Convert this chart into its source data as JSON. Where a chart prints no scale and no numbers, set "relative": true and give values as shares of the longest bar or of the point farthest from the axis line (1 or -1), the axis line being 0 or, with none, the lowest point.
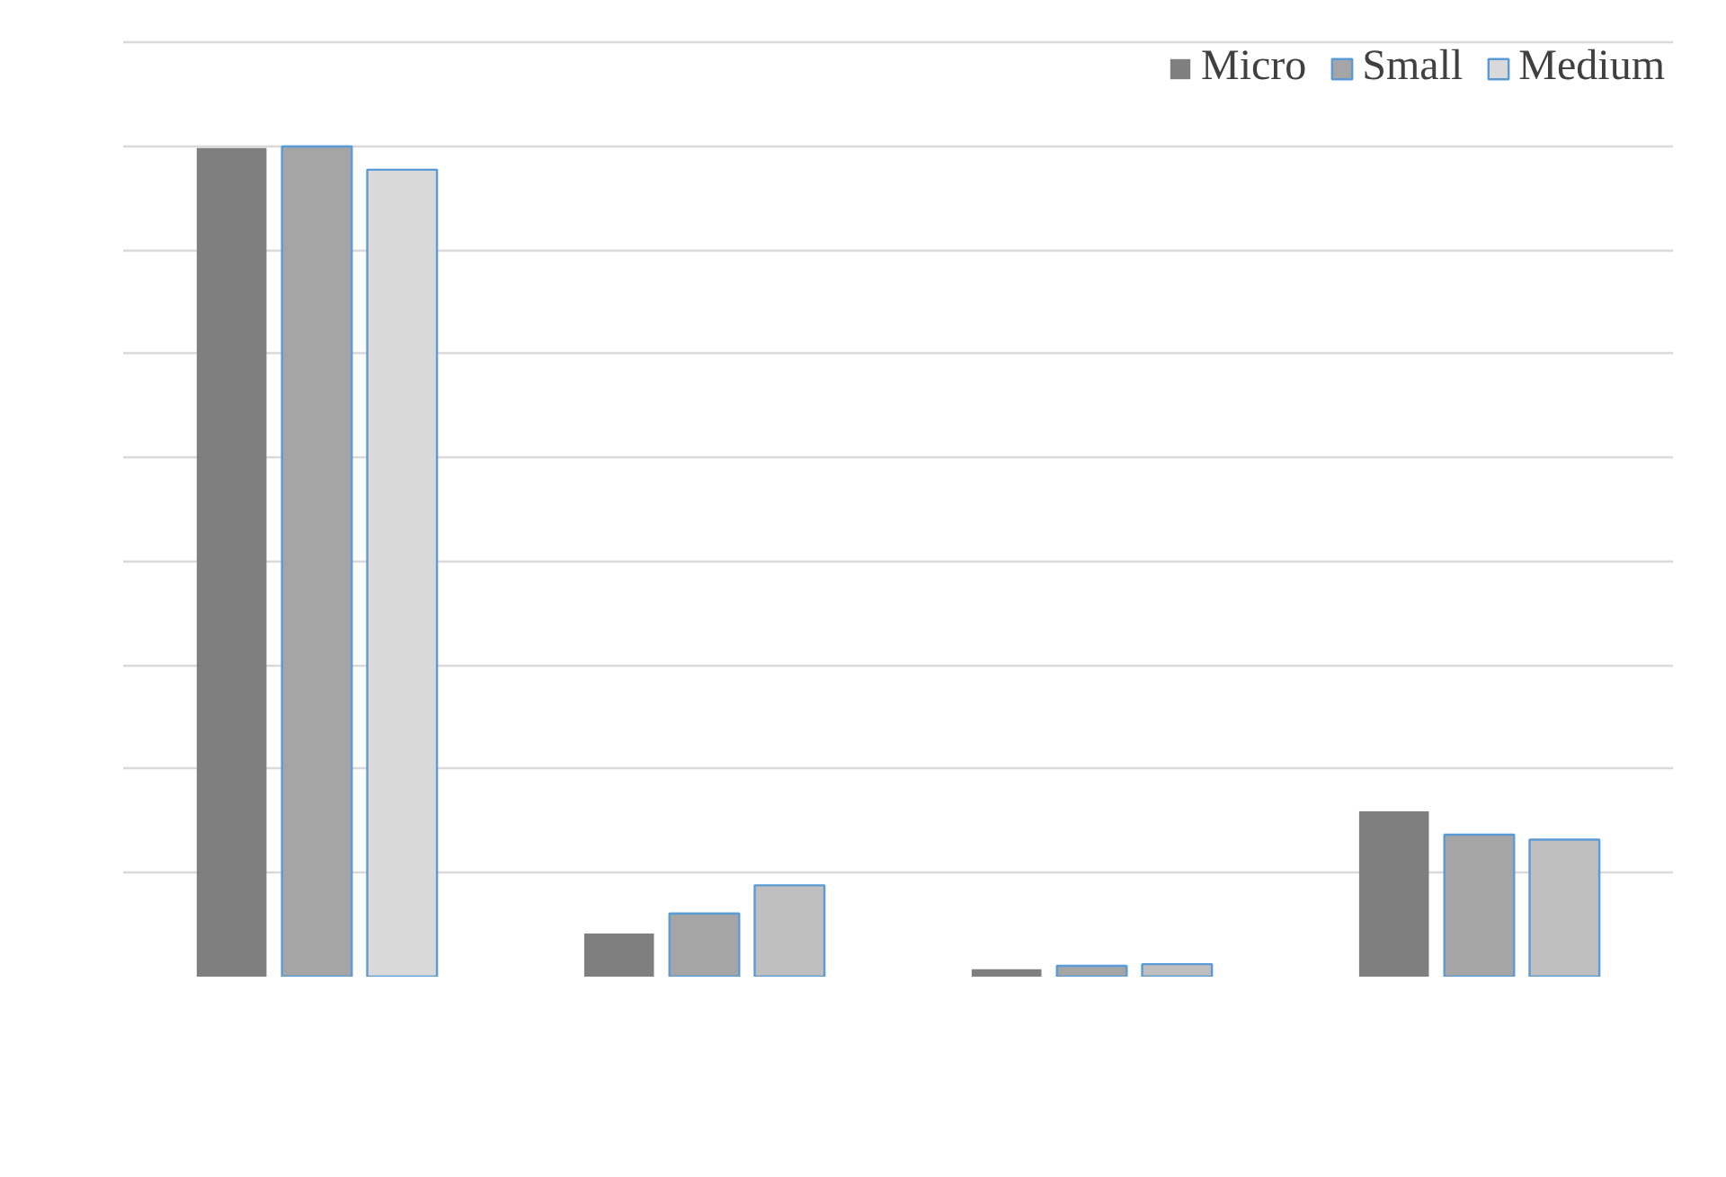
{
  "chart_data": {
    "type": "bar",
    "relative": true,
    "categories": [
      null,
      null,
      null,
      null
    ],
    "series": [
      {
        "name": "Micro",
        "color": "#7f7f7f",
        "values": [
          0.998,
          0.052,
          0.009,
          0.199
        ]
      },
      {
        "name": "Small",
        "color": "#a5a5a5",
        "values": [
          1,
          0.076,
          0.013,
          0.171
        ]
      },
      {
        "name": "Medium",
        "color": "#d9d9d9",
        "colors": [
          null,
          "#bfbfbf",
          "#bfbfbf",
          "#bfbfbf"
        ],
        "values": [
          0.972,
          0.11,
          0.015,
          0.165
        ]
      }
    ],
    "grid": "y",
    "legend": "top right"
  }
}
